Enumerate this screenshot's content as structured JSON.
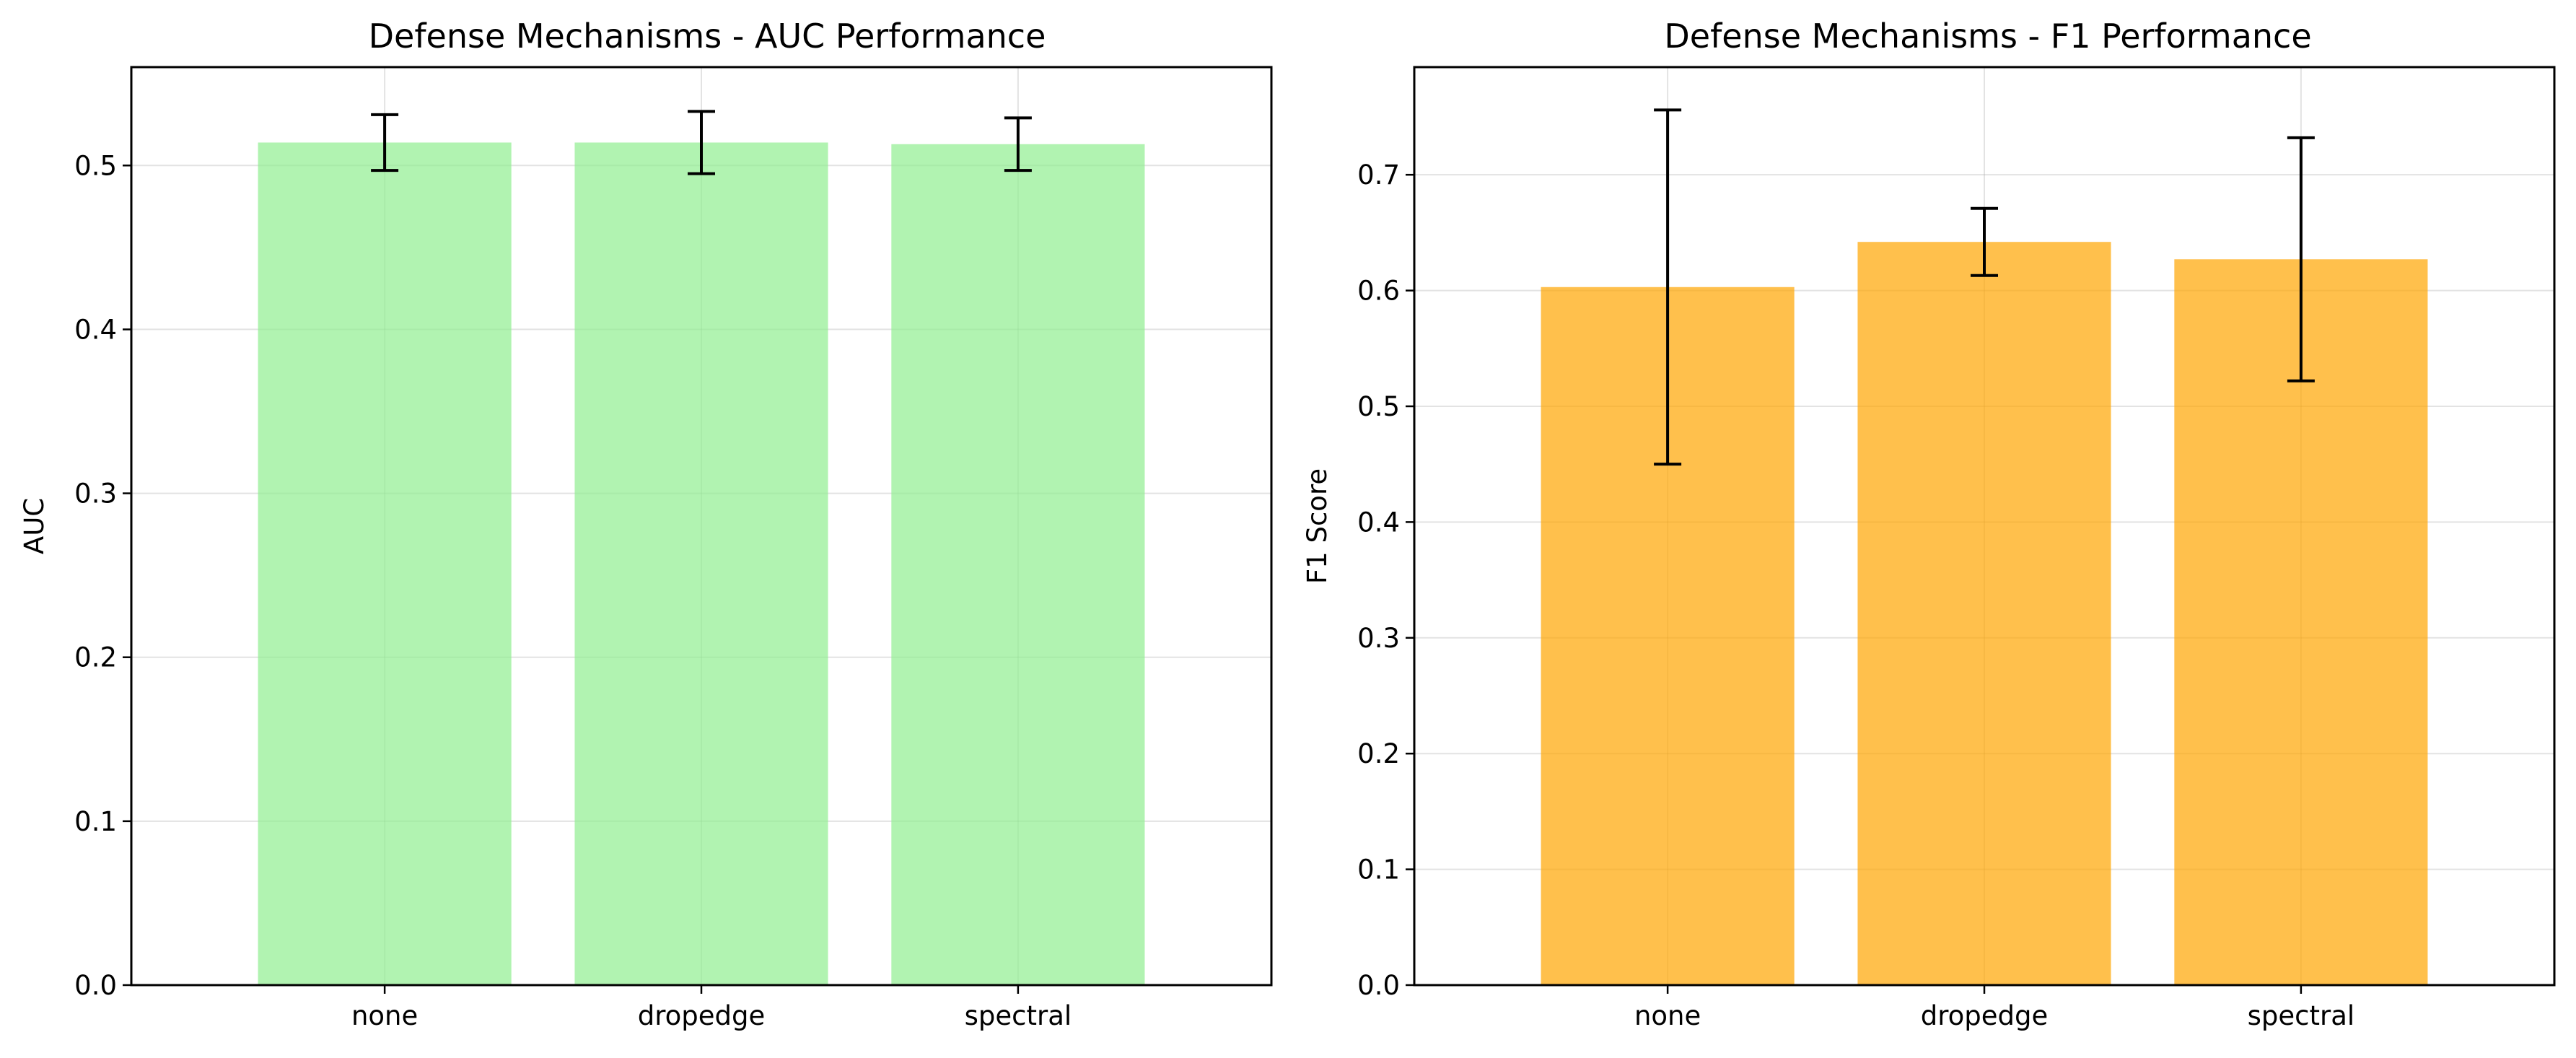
{
  "chart_data": [
    {
      "type": "bar",
      "title": "Defense Mechanisms - AUC Performance",
      "xlabel": "",
      "ylabel": "AUC",
      "categories": [
        "none",
        "dropedge",
        "spectral"
      ],
      "values": [
        0.514,
        0.514,
        0.513
      ],
      "errors": [
        0.017,
        0.019,
        0.016
      ],
      "ylim": [
        0,
        0.56
      ],
      "yticks": [
        "0.0",
        "0.1",
        "0.2",
        "0.3",
        "0.4",
        "0.5"
      ],
      "bar_color": "#90ee90",
      "grid": true
    },
    {
      "type": "bar",
      "title": "Defense Mechanisms - F1 Performance",
      "xlabel": "",
      "ylabel": "F1 Score",
      "categories": [
        "none",
        "dropedge",
        "spectral"
      ],
      "values": [
        0.603,
        0.642,
        0.627
      ],
      "errors": [
        0.153,
        0.029,
        0.105
      ],
      "ylim": [
        0,
        0.793
      ],
      "yticks": [
        "0.0",
        "0.1",
        "0.2",
        "0.3",
        "0.4",
        "0.5",
        "0.6",
        "0.7"
      ],
      "bar_color": "#ffa500",
      "grid": true
    }
  ]
}
